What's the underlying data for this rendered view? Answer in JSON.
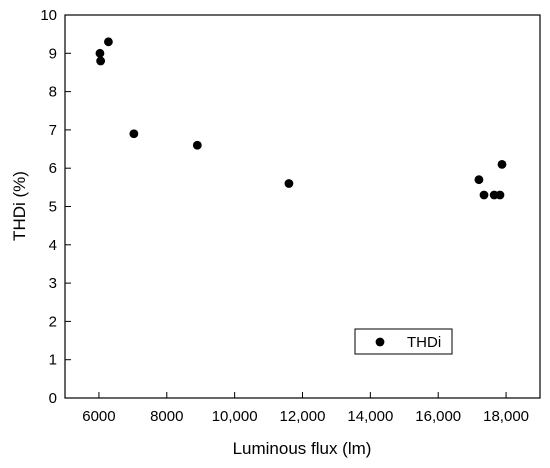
{
  "chart_data": {
    "type": "scatter",
    "xlabel": "Luminous flux (lm)",
    "ylabel": "THDi (%)",
    "xlim": [
      5000,
      19000
    ],
    "ylim": [
      0,
      10
    ],
    "x_ticks": [
      6000,
      8000,
      10000,
      12000,
      14000,
      16000,
      18000
    ],
    "x_tick_labels": [
      "6000",
      "8000",
      "10,000",
      "12,000",
      "14,000",
      "16,000",
      "18,000"
    ],
    "y_ticks": [
      0,
      1,
      2,
      3,
      4,
      5,
      6,
      7,
      8,
      9,
      10
    ],
    "y_tick_labels": [
      "0",
      "1",
      "2",
      "3",
      "4",
      "5",
      "6",
      "7",
      "8",
      "9",
      "10"
    ],
    "grid": false,
    "legend_position": "bottom-right",
    "marker_color": "#000000",
    "series": [
      {
        "name": "THDi",
        "points": [
          {
            "x": 6030,
            "y": 9.0
          },
          {
            "x": 6050,
            "y": 8.8
          },
          {
            "x": 6280,
            "y": 9.3
          },
          {
            "x": 7030,
            "y": 6.9
          },
          {
            "x": 8900,
            "y": 6.6
          },
          {
            "x": 11600,
            "y": 5.6
          },
          {
            "x": 17200,
            "y": 5.7
          },
          {
            "x": 17350,
            "y": 5.3
          },
          {
            "x": 17650,
            "y": 5.3
          },
          {
            "x": 17820,
            "y": 5.3
          },
          {
            "x": 17880,
            "y": 6.1
          }
        ]
      }
    ]
  }
}
